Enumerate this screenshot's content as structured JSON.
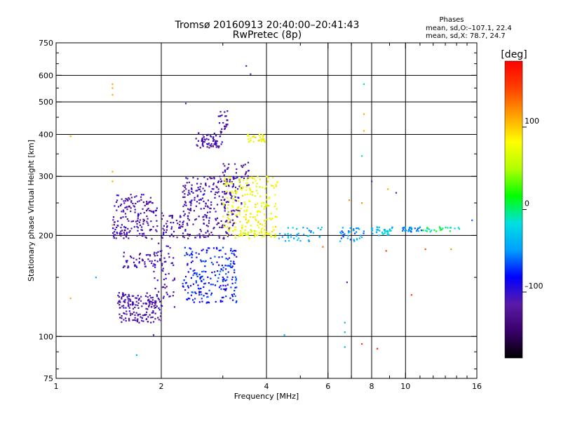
{
  "chart_data": {
    "type": "scatter",
    "title": "Tromsø 20160913 20:40:00–20:41:43",
    "subtitle": "RwPretec (8p)",
    "xlabel": "Frequency [MHz]",
    "ylabel": "Stationary phase Virtual Height [km]",
    "x_scale": "log",
    "y_scale": "log",
    "xlim": [
      1,
      16
    ],
    "ylim": [
      75,
      750
    ],
    "x_ticks": [
      "1",
      "2",
      "4",
      "6",
      "8",
      "10",
      "16"
    ],
    "y_ticks": [
      "750",
      "600",
      "500",
      "400",
      "300",
      "200",
      "100",
      "75"
    ],
    "x_gridlines": [
      2,
      4,
      6,
      7,
      8,
      10
    ],
    "y_gridlines": [
      600,
      500,
      400,
      300,
      200,
      100
    ],
    "grid": true,
    "phases_header": "Phases",
    "phases_o": "mean, sd,O:–107.1, 22.4",
    "phases_x": "mean, sd,X:  78.7, 24.7",
    "colorbar": {
      "label": "[deg]",
      "range": [
        -180,
        180
      ],
      "ticks": [
        "100",
        "0",
        "–100"
      ],
      "tick_values": [
        100,
        0,
        -100
      ],
      "colormap": [
        "#000000",
        "#3a006a",
        "#5a1aa8",
        "#0000ff",
        "#00a0ff",
        "#00e0e0",
        "#00ff00",
        "#b0ff00",
        "#ffff00",
        "#ffa000",
        "#ff4000",
        "#ff0000"
      ]
    },
    "clusters": [
      {
        "x": [
          1.45,
          1.95
        ],
        "y": [
          195,
          265
        ],
        "phase": -115,
        "n": 180
      },
      {
        "x": [
          1.5,
          2.0
        ],
        "y": [
          110,
          135
        ],
        "phase": -115,
        "n": 170
      },
      {
        "x": [
          1.55,
          1.95
        ],
        "y": [
          160,
          178
        ],
        "phase": -115,
        "n": 50
      },
      {
        "x": [
          1.9,
          2.2
        ],
        "y": [
          120,
          190
        ],
        "phase": -112,
        "n": 60
      },
      {
        "x": [
          2.0,
          3.3
        ],
        "y": [
          195,
          235
        ],
        "phase": -115,
        "n": 150
      },
      {
        "x": [
          2.3,
          3.4
        ],
        "y": [
          235,
          300
        ],
        "phase": -112,
        "n": 180
      },
      {
        "x": [
          2.5,
          3.0
        ],
        "y": [
          365,
          405
        ],
        "phase": -115,
        "n": 70
      },
      {
        "x": [
          2.9,
          3.1
        ],
        "y": [
          405,
          470
        ],
        "phase": -112,
        "n": 25
      },
      {
        "x": [
          3.0,
          3.6
        ],
        "y": [
          280,
          330
        ],
        "phase": -115,
        "n": 40
      },
      {
        "x": [
          2.3,
          3.3
        ],
        "y": [
          125,
          185
        ],
        "phase": -80,
        "n": 220
      },
      {
        "x": [
          3.0,
          4.3
        ],
        "y": [
          200,
          300
        ],
        "phase": 80,
        "n": 220
      },
      {
        "x": [
          3.5,
          4.0
        ],
        "y": [
          380,
          400
        ],
        "phase": 80,
        "n": 30
      },
      {
        "x": [
          3.2,
          4.3
        ],
        "y": [
          195,
          208
        ],
        "phase": 70,
        "n": 40
      },
      {
        "x": [
          4.3,
          5.8
        ],
        "y": [
          192,
          212
        ],
        "phase": -40,
        "n": 40
      },
      {
        "x": [
          6.4,
          7.6
        ],
        "y": [
          192,
          212
        ],
        "phase": -50,
        "n": 35
      },
      {
        "x": [
          7.9,
          9.2
        ],
        "y": [
          200,
          212
        ],
        "phase": -30,
        "n": 35
      },
      {
        "x": [
          9.8,
          11.2
        ],
        "y": [
          205,
          212
        ],
        "phase": -50,
        "n": 30
      },
      {
        "x": [
          11.2,
          14.8
        ],
        "y": [
          205,
          212
        ],
        "phase": 0,
        "n": 25
      }
    ],
    "points": [
      [
        3.5,
        640,
        -115
      ],
      [
        3.6,
        605,
        -115
      ],
      [
        2.35,
        495,
        -115
      ],
      [
        1.45,
        565,
        110
      ],
      [
        1.45,
        550,
        110
      ],
      [
        1.45,
        525,
        110
      ],
      [
        7.6,
        565,
        -10
      ],
      [
        7.6,
        460,
        110
      ],
      [
        7.6,
        410,
        110
      ],
      [
        7.5,
        345,
        -10
      ],
      [
        8.0,
        290,
        -115
      ],
      [
        8.9,
        275,
        110
      ],
      [
        9.4,
        268,
        -115
      ],
      [
        6.7,
        110,
        -40
      ],
      [
        6.7,
        103,
        -40
      ],
      [
        6.7,
        93,
        -40
      ],
      [
        7.5,
        95,
        150
      ],
      [
        8.3,
        92,
        160
      ],
      [
        10.4,
        133,
        150
      ],
      [
        1.1,
        395,
        110
      ],
      [
        1.1,
        130,
        110
      ],
      [
        1.3,
        150,
        -40
      ],
      [
        1.7,
        88,
        -40
      ],
      [
        1.9,
        101,
        -115
      ],
      [
        4.5,
        101,
        -40
      ],
      [
        5.8,
        185,
        130
      ],
      [
        6.6,
        200,
        -115
      ],
      [
        8.8,
        180,
        150
      ],
      [
        11.4,
        182,
        140
      ],
      [
        13.5,
        182,
        120
      ],
      [
        15.5,
        222,
        -60
      ],
      [
        6.9,
        255,
        120
      ],
      [
        7.5,
        250,
        120
      ],
      [
        1.45,
        310,
        110
      ],
      [
        1.45,
        290,
        110
      ],
      [
        1.45,
        215,
        110
      ],
      [
        6.8,
        145,
        -115
      ]
    ]
  }
}
